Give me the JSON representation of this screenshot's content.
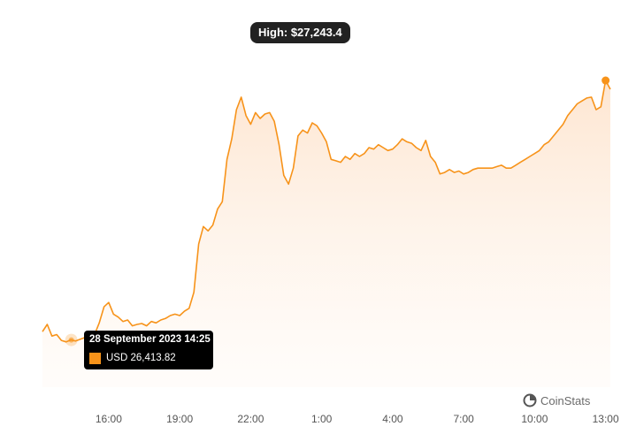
{
  "chart_data": {
    "type": "area",
    "title": "",
    "xlabel": "",
    "ylabel": "",
    "currency": "USD",
    "x_ticks": [
      "16:00",
      "19:00",
      "22:00",
      "1:00",
      "4:00",
      "7:00",
      "10:00",
      "13:00"
    ],
    "x_tick_hours": [
      16,
      19,
      22,
      25,
      28,
      31,
      34,
      37
    ],
    "xlim": [
      13.2,
      37.2
    ],
    "ylim": [
      26250,
      27400
    ],
    "grid": false,
    "series": [
      {
        "x": [
          13.2,
          13.4,
          13.6,
          13.8,
          14.0,
          14.2,
          14.4,
          14.6,
          14.8,
          15.0,
          15.2,
          15.4,
          15.6,
          15.8,
          16.0,
          16.2,
          16.4,
          16.6,
          16.8,
          17.0,
          17.2,
          17.4,
          17.6,
          17.8,
          18.0,
          18.2,
          18.4,
          18.6,
          18.8,
          19.0,
          19.2,
          19.4,
          19.6,
          19.8,
          20.0,
          20.2,
          20.4,
          20.6,
          20.8,
          21.0,
          21.2,
          21.4,
          21.6,
          21.8,
          22.0,
          22.2,
          22.4,
          22.6,
          22.8,
          23.0,
          23.2,
          23.4,
          23.6,
          23.8,
          24.0,
          24.2,
          24.4,
          24.6,
          24.8,
          25.0,
          25.2,
          25.4,
          25.6,
          25.8,
          26.0,
          26.2,
          26.4,
          26.6,
          26.8,
          27.0,
          27.2,
          27.4,
          27.6,
          27.8,
          28.0,
          28.2,
          28.4,
          28.6,
          28.8,
          29.0,
          29.2,
          29.4,
          29.6,
          29.8,
          30.0,
          30.2,
          30.4,
          30.6,
          30.8,
          31.0,
          31.2,
          31.4,
          31.6,
          31.8,
          32.0,
          32.2,
          32.4,
          32.6,
          32.8,
          33.0,
          33.2,
          33.4,
          33.6,
          33.8,
          34.0,
          34.2,
          34.4,
          34.6,
          34.8,
          35.0,
          35.2,
          35.4,
          35.6,
          35.8,
          36.0,
          36.2,
          36.4,
          36.6,
          36.8,
          37.0,
          37.2
        ],
        "values": [
          26440,
          26465,
          26425,
          26430,
          26410,
          26405,
          26412,
          26408,
          26414,
          26420,
          26400,
          26430,
          26470,
          26525,
          26540,
          26500,
          26490,
          26475,
          26480,
          26460,
          26465,
          26468,
          26460,
          26475,
          26470,
          26480,
          26485,
          26495,
          26500,
          26495,
          26510,
          26520,
          26575,
          26740,
          26800,
          26785,
          26805,
          26860,
          26885,
          27030,
          27100,
          27200,
          27243,
          27180,
          27150,
          27190,
          27170,
          27185,
          27190,
          27160,
          27080,
          26975,
          26945,
          27000,
          27110,
          27130,
          27120,
          27155,
          27145,
          27120,
          27090,
          27030,
          27025,
          27020,
          27040,
          27030,
          27050,
          27040,
          27050,
          27070,
          27065,
          27080,
          27070,
          27060,
          27065,
          27080,
          27100,
          27090,
          27085,
          27070,
          27060,
          27095,
          27040,
          27020,
          26980,
          26985,
          26995,
          26985,
          26990,
          26980,
          26985,
          26995,
          27000,
          27000,
          27000,
          27000,
          27005,
          27010,
          27000,
          27000,
          27010,
          27020,
          27030,
          27040,
          27050,
          27060,
          27080,
          27090,
          27110,
          27130,
          27150,
          27180,
          27200,
          27220,
          27230,
          27240,
          27243,
          27200,
          27210,
          27300,
          27270
        ],
        "color": "#f7931a"
      }
    ],
    "annotations": {
      "high_label": "High: $27,243.4",
      "tooltip_date": "28 September 2023 14:25",
      "tooltip_value": "USD 26,413.82"
    },
    "legend": "none"
  },
  "watermark": {
    "text": "CoinStats",
    "icon": "coinstats-logo-icon"
  },
  "colors": {
    "line": "#f7931a",
    "area_top": "#fde7d2",
    "area_bottom": "#ffffff",
    "tooltip_bg": "#000000",
    "high_label_bg": "#222222"
  }
}
